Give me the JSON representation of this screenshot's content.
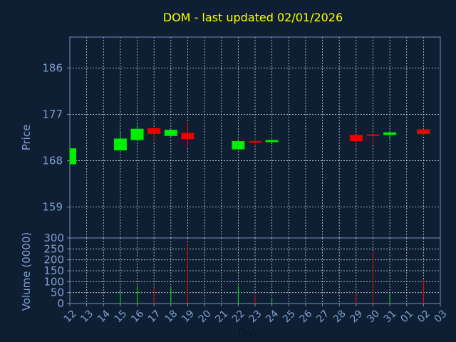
{
  "chart_data": {
    "type": "candlestick",
    "title": "DOM - last updated 02/01/2026",
    "xlabel": "Day",
    "x_ticks": [
      "12",
      "13",
      "14",
      "15",
      "16",
      "17",
      "18",
      "19",
      "20",
      "21",
      "22",
      "23",
      "24",
      "25",
      "26",
      "27",
      "28",
      "29",
      "30",
      "31",
      "01",
      "02",
      "03"
    ],
    "price_panel": {
      "ylabel": "Price",
      "ylim": [
        153,
        192
      ],
      "y_ticks": [
        159,
        168,
        177,
        186
      ],
      "grid": true
    },
    "volume_panel": {
      "ylabel": "Volume (0000)",
      "ylim": [
        0,
        300
      ],
      "y_ticks": [
        0,
        50,
        100,
        150,
        200,
        250,
        300
      ],
      "grid": true
    },
    "colors": {
      "up": "#00ee00",
      "down": "#ee0000",
      "title": "#ffff00",
      "axis_text": "#7f9fcf"
    },
    "candles": [
      {
        "day": "12",
        "open": 167.3,
        "high": 170.4,
        "low": 167.3,
        "close": 170.4,
        "volume": 0
      },
      {
        "day": "15",
        "open": 170.0,
        "high": 173.6,
        "low": 170.0,
        "close": 172.3,
        "volume": 60
      },
      {
        "day": "16",
        "open": 172.0,
        "high": 175.0,
        "low": 172.0,
        "close": 174.2,
        "volume": 80
      },
      {
        "day": "17",
        "open": 174.3,
        "high": 174.3,
        "low": 171.8,
        "close": 173.2,
        "volume": 75
      },
      {
        "day": "18",
        "open": 172.8,
        "high": 174.0,
        "low": 172.6,
        "close": 174.0,
        "volume": 75
      },
      {
        "day": "19",
        "open": 173.4,
        "high": 175.5,
        "low": 170.6,
        "close": 172.2,
        "volume": 275
      },
      {
        "day": "22",
        "open": 170.2,
        "high": 172.2,
        "low": 170.2,
        "close": 171.8,
        "volume": 80
      },
      {
        "day": "23",
        "open": 171.8,
        "high": 172.6,
        "low": 170.9,
        "close": 171.6,
        "volume": 40
      },
      {
        "day": "24",
        "open": 171.6,
        "high": 172.2,
        "low": 171.4,
        "close": 172.0,
        "volume": 25
      },
      {
        "day": "29",
        "open": 173.0,
        "high": 173.0,
        "low": 170.8,
        "close": 171.8,
        "volume": 50
      },
      {
        "day": "30",
        "open": 173.1,
        "high": 173.1,
        "low": 171.0,
        "close": 172.9,
        "volume": 235
      },
      {
        "day": "31",
        "open": 173.0,
        "high": 173.8,
        "low": 172.2,
        "close": 173.5,
        "volume": 45
      },
      {
        "day": "02",
        "open": 174.1,
        "high": 174.1,
        "low": 172.9,
        "close": 173.2,
        "volume": 110
      }
    ]
  }
}
